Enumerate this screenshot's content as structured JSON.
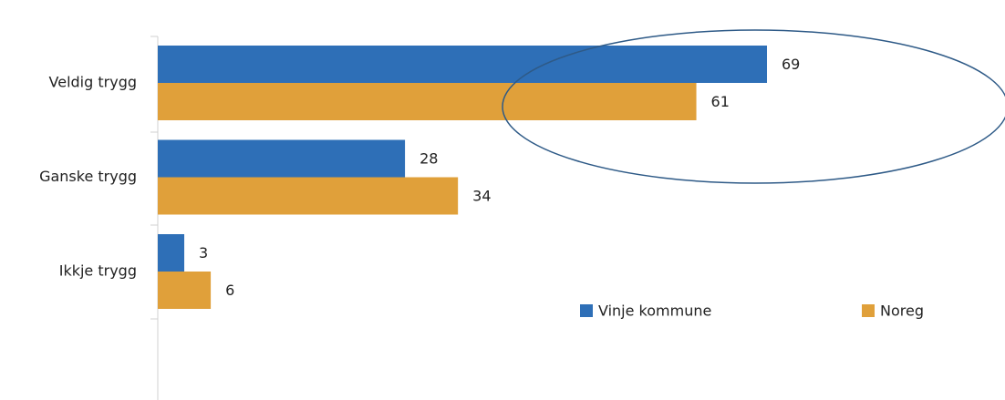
{
  "chart_data": {
    "type": "bar",
    "orientation": "horizontal",
    "categories": [
      "Veldig trygg",
      "Ganske trygg",
      "Ikkje trygg"
    ],
    "series": [
      {
        "name": "Vinje kommune",
        "color": "#2e6fb7",
        "values": [
          69,
          28,
          3
        ]
      },
      {
        "name": "Noreg",
        "color": "#e0a03a",
        "values": [
          61,
          34,
          6
        ]
      }
    ]
  }
}
